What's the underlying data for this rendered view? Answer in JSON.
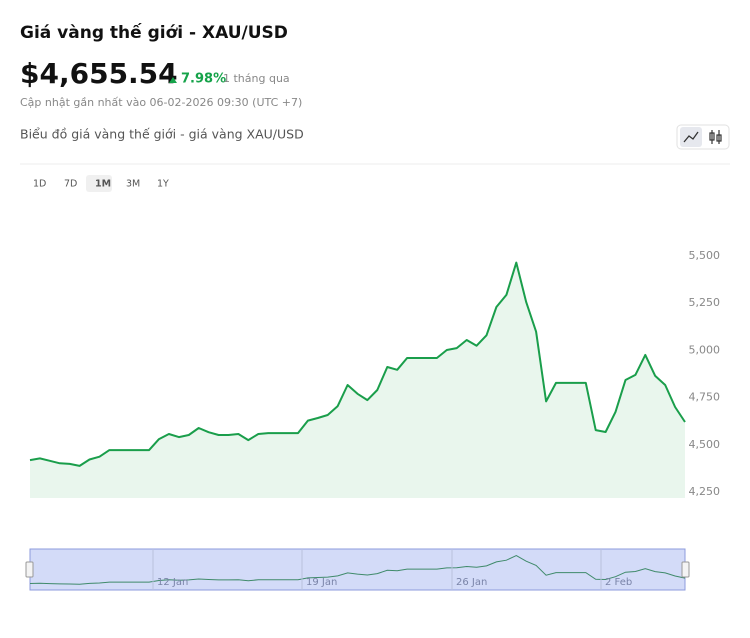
{
  "header": {
    "title": "Giá vàng thế giới - XAU/USD",
    "price": "$4,655.54",
    "change": "7.98%",
    "period": "1 tháng qua",
    "updated": "Cập nhật gần nhất vào 06-02-2026 09:30 (UTC +7)"
  },
  "ranges": {
    "options": [
      "1D",
      "7D",
      "1M",
      "3M",
      "1Y"
    ],
    "selected": "1M"
  },
  "navigator": {
    "labels": [
      "12 Jan",
      "19 Jan",
      "26 Jan",
      "2 Feb"
    ]
  },
  "chart_data": {
    "type": "line",
    "title": "Biểu đồ giá vàng thế giới - giá vàng XAU/USD",
    "color": "#1a9e4b",
    "fill": "#e9f6ed",
    "values": [
      4419,
      4428,
      4415,
      4402,
      4399,
      4388,
      4422,
      4437,
      4472,
      4472,
      4472,
      4472,
      4472,
      4530,
      4557,
      4541,
      4552,
      4589,
      4567,
      4552,
      4552,
      4557,
      4525,
      4557,
      4562,
      4562,
      4562,
      4562,
      4628,
      4642,
      4658,
      4705,
      4817,
      4770,
      4737,
      4790,
      4912,
      4897,
      4960,
      4960,
      4960,
      4960,
      5002,
      5012,
      5055,
      5025,
      5080,
      5230,
      5294,
      5465,
      5256,
      5099,
      4730,
      4828,
      4828,
      4828,
      4828,
      4578,
      4568,
      4674,
      4843,
      4870,
      4976,
      4865,
      4817,
      4700,
      4621
    ],
    "ylim": [
      4250,
      5750
    ],
    "yticks": [
      {
        "value": 4250,
        "label": "4,250"
      },
      {
        "value": 4500,
        "label": "4,500"
      },
      {
        "value": 4750,
        "label": "4,750"
      },
      {
        "value": 5000,
        "label": "5,000"
      },
      {
        "value": 5250,
        "label": "5,250"
      },
      {
        "value": 5500,
        "label": "5,500"
      }
    ]
  }
}
